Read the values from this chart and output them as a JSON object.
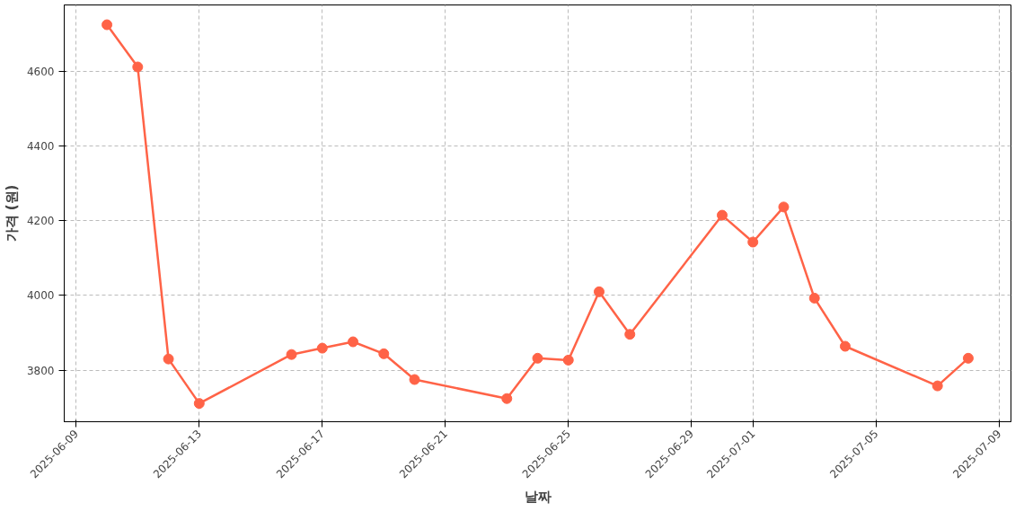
{
  "chart_data": {
    "type": "line",
    "xlabel": "날짜",
    "ylabel": "가격 (원)",
    "x": [
      "2025-06-10",
      "2025-06-11",
      "2025-06-12",
      "2025-06-13",
      "2025-06-16",
      "2025-06-17",
      "2025-06-18",
      "2025-06-19",
      "2025-06-20",
      "2025-06-23",
      "2025-06-24",
      "2025-06-25",
      "2025-06-26",
      "2025-06-27",
      "2025-06-30",
      "2025-07-01",
      "2025-07-02",
      "2025-07-03",
      "2025-07-04",
      "2025-07-07",
      "2025-07-08"
    ],
    "series": [
      {
        "color": "#ff6347",
        "values": [
          4725,
          4612,
          3830,
          3711,
          3842,
          3859,
          3876,
          3844,
          3775,
          3724,
          3832,
          3827,
          4010,
          3896,
          4215,
          4143,
          4237,
          3993,
          3864,
          3758,
          3832
        ]
      }
    ],
    "xlim": [
      "2025-06-08T14:40",
      "2025-07-09T09:20"
    ],
    "xticks": [
      "2025-06-09",
      "2025-06-13",
      "2025-06-17",
      "2025-06-21",
      "2025-06-25",
      "2025-06-29",
      "2025-07-01",
      "2025-07-05",
      "2025-07-09"
    ],
    "ylim": [
      3662,
      4778
    ],
    "yticks": [
      3800,
      4000,
      4200,
      4400,
      4600
    ],
    "grid": true,
    "marker": "circle",
    "line_style": "solid"
  }
}
